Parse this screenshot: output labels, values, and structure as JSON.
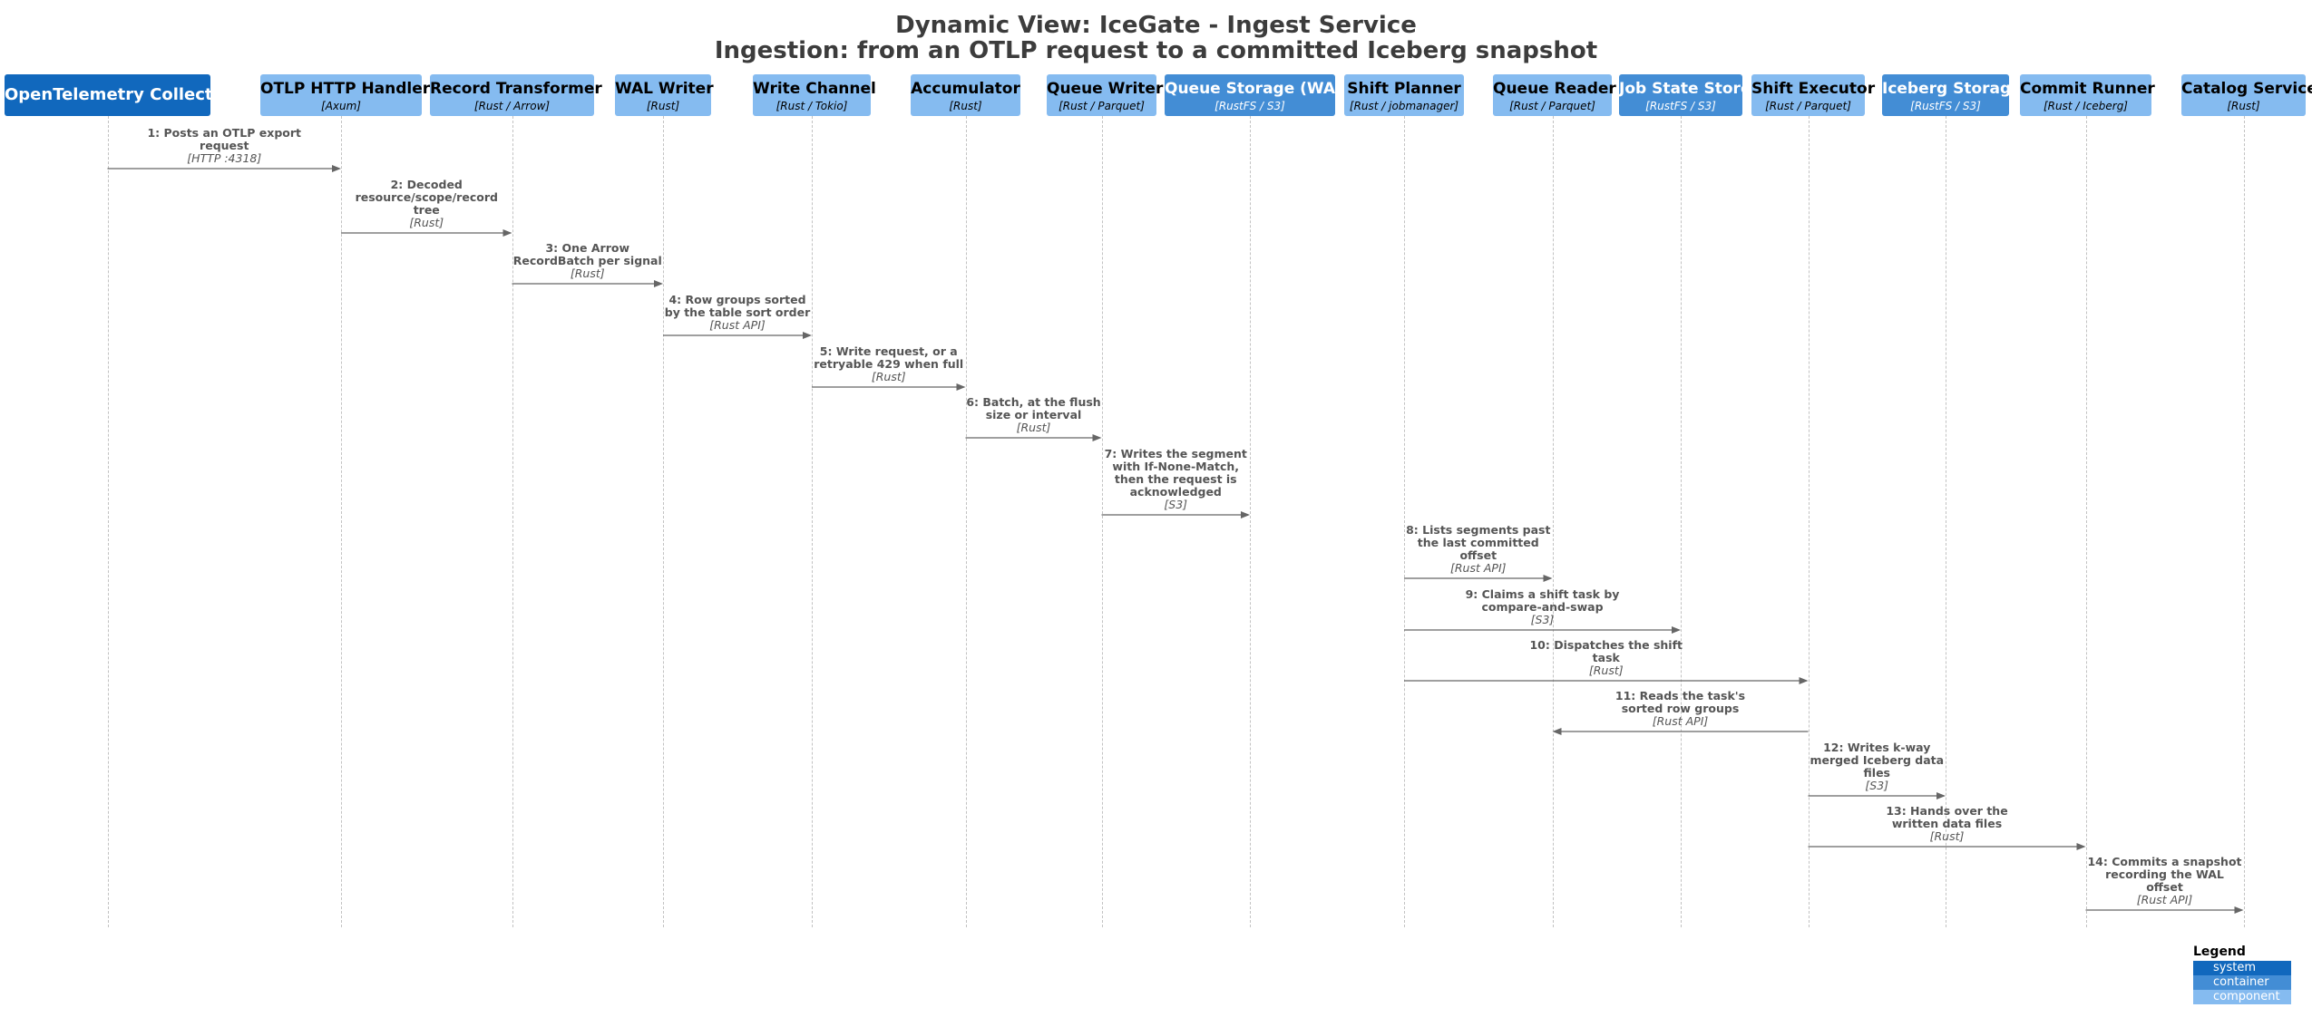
{
  "title": "Dynamic View: IceGate - Ingest Service",
  "subtitle": "Ingestion: from an OTLP request to a committed Iceberg snapshot",
  "participants": [
    {
      "name": "OpenTelemetry Collector / SDK",
      "tech": "",
      "kind": "system"
    },
    {
      "name": "OTLP HTTP Handler",
      "tech": "[Axum]",
      "kind": "component"
    },
    {
      "name": "Record Transformer",
      "tech": "[Rust / Arrow]",
      "kind": "component"
    },
    {
      "name": "WAL Writer",
      "tech": "[Rust]",
      "kind": "component"
    },
    {
      "name": "Write Channel",
      "tech": "[Rust / Tokio]",
      "kind": "component"
    },
    {
      "name": "Accumulator",
      "tech": "[Rust]",
      "kind": "component"
    },
    {
      "name": "Queue Writer",
      "tech": "[Rust / Parquet]",
      "kind": "component"
    },
    {
      "name": "Queue Storage (WAL)",
      "tech": "[RustFS / S3]",
      "kind": "container"
    },
    {
      "name": "Shift Planner",
      "tech": "[Rust / jobmanager]",
      "kind": "component"
    },
    {
      "name": "Queue Reader",
      "tech": "[Rust / Parquet]",
      "kind": "component"
    },
    {
      "name": "Job State Store",
      "tech": "[RustFS / S3]",
      "kind": "container"
    },
    {
      "name": "Shift Executor",
      "tech": "[Rust / Parquet]",
      "kind": "component"
    },
    {
      "name": "Iceberg Storage",
      "tech": "[RustFS / S3]",
      "kind": "container"
    },
    {
      "name": "Commit Runner",
      "tech": "[Rust / Iceberg]",
      "kind": "component"
    },
    {
      "name": "Catalog Service",
      "tech": "[Rust]",
      "kind": "component"
    }
  ],
  "messages": [
    {
      "from": 0,
      "to": 1,
      "lines": [
        "1: Posts an OTLP export",
        "request"
      ],
      "tech": "[HTTP :4318]"
    },
    {
      "from": 1,
      "to": 2,
      "lines": [
        "2: Decoded",
        "resource/scope/record",
        "tree"
      ],
      "tech": "[Rust]"
    },
    {
      "from": 2,
      "to": 3,
      "lines": [
        "3: One Arrow",
        "RecordBatch per signal"
      ],
      "tech": "[Rust]"
    },
    {
      "from": 3,
      "to": 4,
      "lines": [
        "4: Row groups sorted",
        "by the table sort order"
      ],
      "tech": "[Rust API]"
    },
    {
      "from": 4,
      "to": 5,
      "lines": [
        "5: Write request, or a",
        "retryable 429 when full"
      ],
      "tech": "[Rust]"
    },
    {
      "from": 5,
      "to": 6,
      "lines": [
        "6: Batch, at the flush",
        "size or interval"
      ],
      "tech": "[Rust]"
    },
    {
      "from": 6,
      "to": 7,
      "lines": [
        "7: Writes the segment",
        "with If-None-Match,",
        "then the request is",
        "acknowledged"
      ],
      "tech": "[S3]"
    },
    {
      "from": 8,
      "to": 9,
      "lines": [
        "8: Lists segments past",
        "the last committed",
        "offset"
      ],
      "tech": "[Rust API]"
    },
    {
      "from": 8,
      "to": 10,
      "lines": [
        "9: Claims a shift task by",
        "compare-and-swap"
      ],
      "tech": "[S3]"
    },
    {
      "from": 8,
      "to": 11,
      "lines": [
        "10: Dispatches the shift",
        "task"
      ],
      "tech": "[Rust]"
    },
    {
      "from": 11,
      "to": 9,
      "lines": [
        "11: Reads the task's",
        "sorted row groups"
      ],
      "tech": "[Rust API]"
    },
    {
      "from": 11,
      "to": 12,
      "lines": [
        "12: Writes k-way",
        "merged Iceberg data",
        "files"
      ],
      "tech": "[S3]"
    },
    {
      "from": 11,
      "to": 13,
      "lines": [
        "13: Hands over the",
        "written data files"
      ],
      "tech": "[Rust]"
    },
    {
      "from": 13,
      "to": 14,
      "lines": [
        "14: Commits a snapshot",
        "recording the WAL",
        "offset"
      ],
      "tech": "[Rust API]"
    }
  ],
  "legend": {
    "title": "Legend",
    "items": [
      {
        "label": "system",
        "color": "#1168bd"
      },
      {
        "label": "container",
        "color": "#438dd5"
      },
      {
        "label": "component",
        "color": "#85bbf0"
      }
    ]
  }
}
